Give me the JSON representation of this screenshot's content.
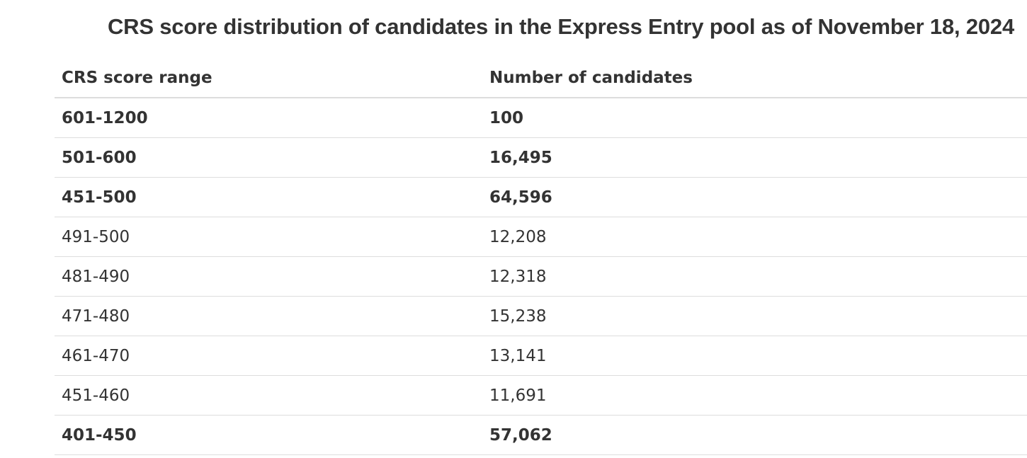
{
  "caption": "CRS score distribution of candidates in the Express Entry pool as of November 18, 2024",
  "table": {
    "headers": {
      "range": "CRS score range",
      "count": "Number of candidates"
    },
    "rows": [
      {
        "range": "601-1200",
        "count": "100",
        "bold": true
      },
      {
        "range": "501-600",
        "count": "16,495",
        "bold": true
      },
      {
        "range": "451-500",
        "count": "64,596",
        "bold": true
      },
      {
        "range": "491-500",
        "count": "12,208",
        "bold": false
      },
      {
        "range": "481-490",
        "count": "12,318",
        "bold": false
      },
      {
        "range": "471-480",
        "count": "15,238",
        "bold": false
      },
      {
        "range": "461-470",
        "count": "13,141",
        "bold": false
      },
      {
        "range": "451-460",
        "count": "11,691",
        "bold": false
      },
      {
        "range": "401-450",
        "count": "57,062",
        "bold": true
      }
    ]
  }
}
